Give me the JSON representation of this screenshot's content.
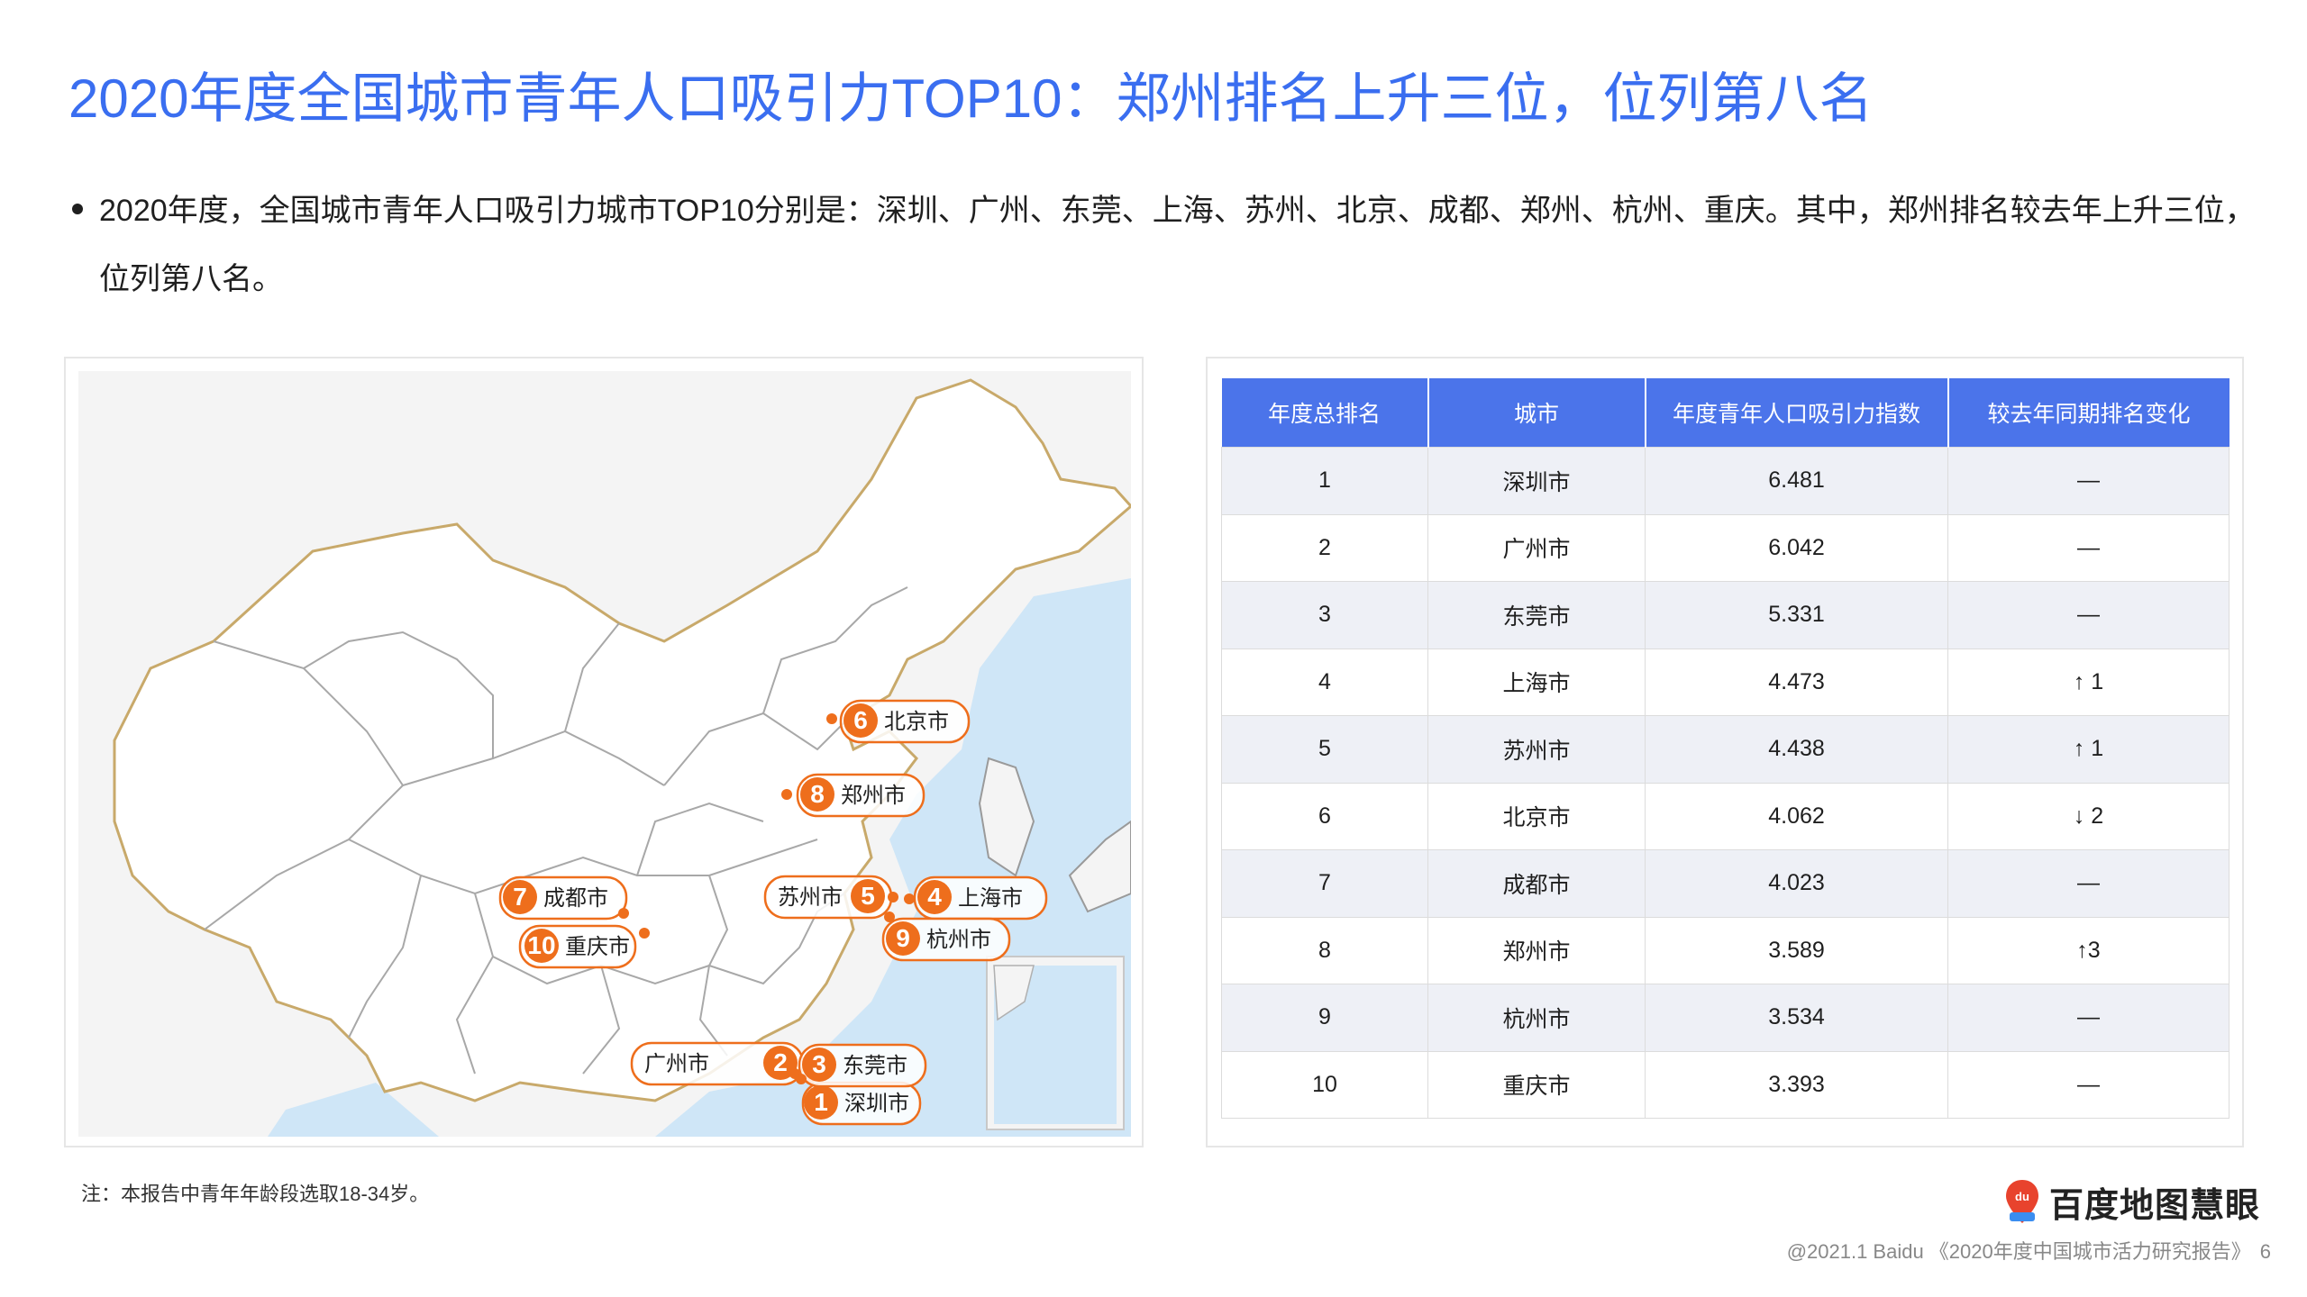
{
  "title": "2020年度全国城市青年人口吸引力TOP10：郑州排名上升三位，位列第八名",
  "bullet": "2020年度，全国城市青年人口吸引力城市TOP10分别是：深圳、广州、东莞、上海、苏州、北京、成都、郑州、杭州、重庆。其中，郑州排名较去年上升三位，位列第八名。",
  "map": {
    "markers": [
      {
        "rank": "1",
        "label": "深圳市"
      },
      {
        "rank": "2",
        "label": "广州市"
      },
      {
        "rank": "3",
        "label": "东莞市"
      },
      {
        "rank": "4",
        "label": "上海市"
      },
      {
        "rank": "5",
        "label": "苏州市"
      },
      {
        "rank": "6",
        "label": "北京市"
      },
      {
        "rank": "7",
        "label": "成都市"
      },
      {
        "rank": "8",
        "label": "郑州市"
      },
      {
        "rank": "9",
        "label": "杭州市"
      },
      {
        "rank": "10",
        "label": "重庆市"
      }
    ]
  },
  "table": {
    "headers": [
      "年度总排名",
      "城市",
      "年度青年人口吸引力指数",
      "较去年同期排名变化"
    ],
    "rows": [
      {
        "rank": "1",
        "city": "深圳市",
        "index": "6.481",
        "change": "—",
        "dir": "none"
      },
      {
        "rank": "2",
        "city": "广州市",
        "index": "6.042",
        "change": "—",
        "dir": "none"
      },
      {
        "rank": "3",
        "city": "东莞市",
        "index": "5.331",
        "change": "—",
        "dir": "none"
      },
      {
        "rank": "4",
        "city": "上海市",
        "index": "4.473",
        "change": "↑ 1",
        "dir": "up"
      },
      {
        "rank": "5",
        "city": "苏州市",
        "index": "4.438",
        "change": "↑ 1",
        "dir": "up"
      },
      {
        "rank": "6",
        "city": "北京市",
        "index": "4.062",
        "change": "↓ 2",
        "dir": "down"
      },
      {
        "rank": "7",
        "city": "成都市",
        "index": "4.023",
        "change": "—",
        "dir": "none"
      },
      {
        "rank": "8",
        "city": "郑州市",
        "index": "3.589",
        "change": "↑3",
        "dir": "up"
      },
      {
        "rank": "9",
        "city": "杭州市",
        "index": "3.534",
        "change": "—",
        "dir": "none"
      },
      {
        "rank": "10",
        "city": "重庆市",
        "index": "3.393",
        "change": "—",
        "dir": "none"
      }
    ]
  },
  "note": "注：本报告中青年年龄段选取18-34岁。",
  "logo": {
    "text": "百度地图慧眼",
    "icon": "baidu-map-pin-icon",
    "badge": "du"
  },
  "footer": {
    "text": "@2021.1 Baidu 《2020年度中国城市活力研究报告》",
    "page": "6"
  },
  "colors": {
    "accent": "#3a6ef0",
    "header": "#4b74ea",
    "marker": "#ee6e1c",
    "up": "#c0392b",
    "down": "#2e9e3e"
  }
}
